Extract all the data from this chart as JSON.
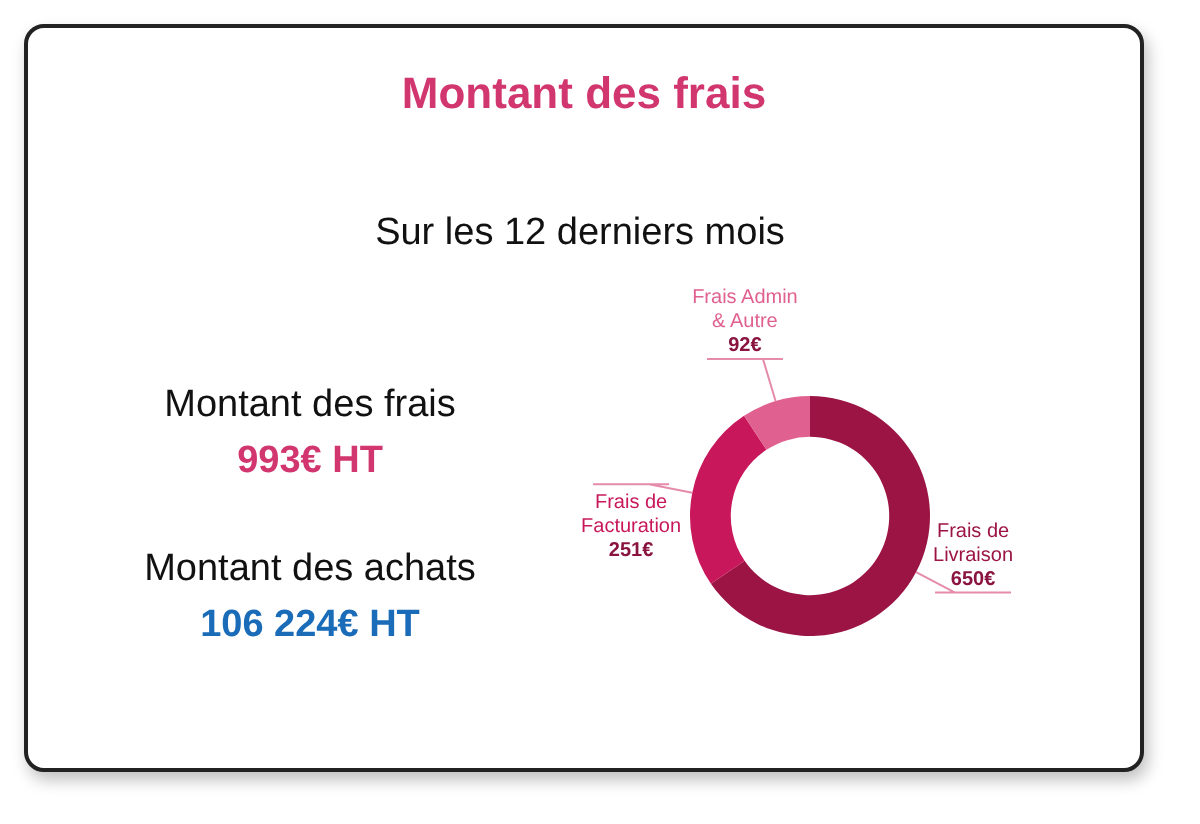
{
  "chart_data": {
    "type": "donut",
    "title": "Montant des frais",
    "subtitle": "Sur les 12 derniers mois",
    "categories": [
      "Frais de Livraison",
      "Frais de Facturation",
      "Frais Admin & Autre"
    ],
    "values": [
      650,
      251,
      92
    ],
    "value_labels": [
      "650€",
      "251€",
      "92€"
    ],
    "colors": [
      "#9b1444",
      "#c8175b",
      "#e0608f"
    ],
    "annotations": [
      "Montant des frais",
      "993€ HT",
      "Montant des achats",
      "106 224€ HT"
    ],
    "legend": false
  }
}
